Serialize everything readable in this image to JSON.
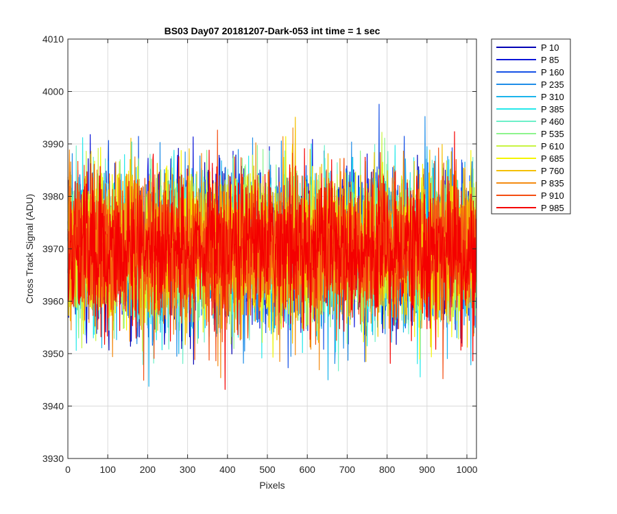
{
  "chart_data": {
    "type": "line",
    "title": "BS03 Day07 20181207-Dark-053 int time = 1 sec",
    "xlabel": "Pixels",
    "ylabel": "Cross Track Signal (ADU)",
    "xlim": [
      0,
      1024
    ],
    "ylim": [
      3930,
      4010
    ],
    "xticks": [
      0,
      100,
      200,
      300,
      400,
      500,
      600,
      700,
      800,
      900,
      1000
    ],
    "yticks": [
      3930,
      3940,
      3950,
      3960,
      3970,
      3980,
      3990,
      4000,
      4010
    ],
    "grid": true,
    "legend_placement": "outside-top-right",
    "noise": {
      "mean": 3970,
      "sigma": 7,
      "samples": 1024
    },
    "series": [
      {
        "name": "P 10",
        "color": "#0000b4"
      },
      {
        "name": "P 85",
        "color": "#0a14d8"
      },
      {
        "name": "P 160",
        "color": "#1450e6"
      },
      {
        "name": "P 235",
        "color": "#1e8ce8"
      },
      {
        "name": "P 310",
        "color": "#1ab4ec"
      },
      {
        "name": "P 385",
        "color": "#24e8ea"
      },
      {
        "name": "P 460",
        "color": "#6cf0c8"
      },
      {
        "name": "P 535",
        "color": "#8cf48c"
      },
      {
        "name": "P 610",
        "color": "#c8f440"
      },
      {
        "name": "P 685",
        "color": "#f4f400"
      },
      {
        "name": "P 760",
        "color": "#f4c000"
      },
      {
        "name": "P 835",
        "color": "#f48a10"
      },
      {
        "name": "P 910",
        "color": "#f44c10"
      },
      {
        "name": "P 985",
        "color": "#f40000"
      }
    ]
  }
}
